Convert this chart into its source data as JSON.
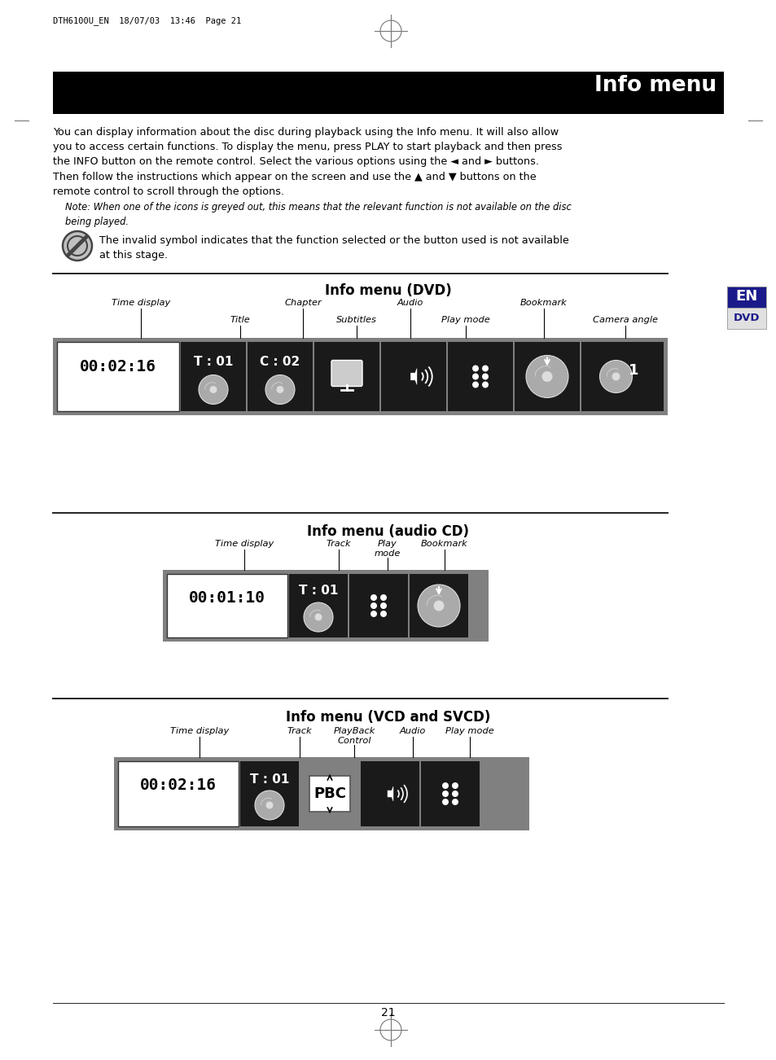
{
  "title_text": "Info menu",
  "header_meta": "DTH6100U_EN  18/07/03  13:46  Page 21",
  "dvd_menu_title": "Info menu (DVD)",
  "cd_menu_title": "Info menu (audio CD)",
  "vcd_menu_title": "Info menu (VCD and SVCD)",
  "dvd_time": "00:02:16",
  "dvd_track1": "T : 01",
  "dvd_track2": "C : 02",
  "cd_time": "00:01:10",
  "cd_track": "T : 01",
  "vcd_time": "00:02:16",
  "vcd_track": "T : 01",
  "page_number": "21",
  "background": "#ffffff",
  "bar_grey": "#808080",
  "icon_bg": "#1a1a1a",
  "time_bg": "#ffffff",
  "en_top_bg": "#1a1a8a",
  "en_bot_bg": "#e0e0e0",
  "en_top_fg": "#ffffff",
  "en_bot_fg": "#1a1a8a",
  "fs_body": 9.2,
  "fs_label": 8.2,
  "fs_time": 14,
  "fs_track": 11,
  "fs_title": 12
}
